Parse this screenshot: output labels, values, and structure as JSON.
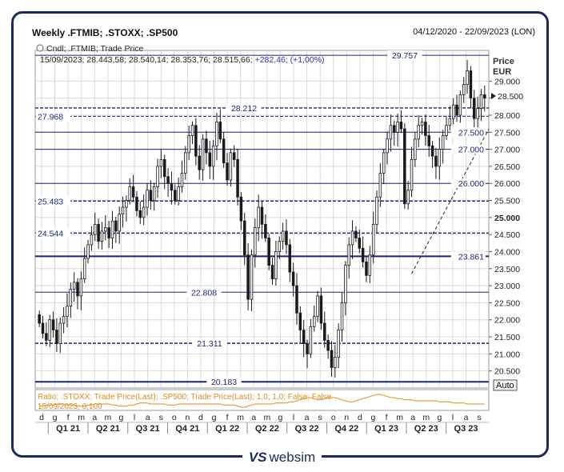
{
  "header": {
    "title": "Weekly .FTMIB; .STOXX; .SP500",
    "date_range": "04/12/2020 - 22/09/2023 (LON)"
  },
  "legend": {
    "line1": "Cndl; .FTMIB; Trade Price",
    "line2_prefix": "15/09/2023; 28.443,58; 28.540,14; 28.353,76; 28.515,66;",
    "line2_change": "+282,46; (+1,00%)",
    "ratio_line": "Ratio; .STOXX; Trade Price(Last); .SP500; Trade Price(Last);   1,0; 1,0; False; False",
    "ratio_line2": "15/09/2023; 0,100"
  },
  "axis": {
    "price_label": "Price",
    "currency": "EUR",
    "auto_button": "Auto"
  },
  "brand": {
    "name": "websim",
    "mark": "VS"
  },
  "colors": {
    "candle": "#1a1a1a",
    "level_line": "#1a237e",
    "level_label": "#1a237e",
    "ratio_line": "#e08a1e",
    "grid": "#d8d8d8",
    "frame": "#1a2a5c"
  },
  "chart_data": {
    "type": "candlestick",
    "y_range": [
      20.0,
      29.9
    ],
    "y_ticks": [
      "20.500",
      "21.000",
      "21.500",
      "22.000",
      "22.500",
      "23.000",
      "23.500",
      "24.000",
      "24.500",
      "25.000",
      "25.500",
      "26.000",
      "26.500",
      "27.000",
      "27.500",
      "28.000",
      "28.500",
      "29.000"
    ],
    "y_ticks_bold": [
      "25.000"
    ],
    "current_price": "28.500",
    "x_months": [
      "d",
      "g",
      "f",
      "m",
      "a",
      "m",
      "g",
      "l",
      "a",
      "s",
      "o",
      "n",
      "d",
      "g",
      "f",
      "m",
      "a",
      "m",
      "g",
      "l",
      "a",
      "s",
      "o",
      "n",
      "d",
      "g",
      "f",
      "m",
      "a",
      "m",
      "g",
      "l",
      "a",
      "s"
    ],
    "x_quarters": [
      "Q1 21",
      "Q2 21",
      "Q3 21",
      "Q4 21",
      "Q1 22",
      "Q2 22",
      "Q3 22",
      "Q4 22",
      "Q1 23",
      "Q2 23",
      "Q3 23"
    ],
    "levels": [
      {
        "value": 29.757,
        "label": "29.757",
        "style": "solid",
        "weight": "thin",
        "label_pos": "mid"
      },
      {
        "value": 28.212,
        "label": "28.212",
        "style": "dashed",
        "weight": "medium",
        "label_pos": "mid"
      },
      {
        "value": 27.968,
        "label": "27.968",
        "style": "dashed",
        "weight": "thin",
        "label_pos": "left"
      },
      {
        "value": 27.5,
        "label": "27.500",
        "style": "solid",
        "weight": "thin",
        "label_pos": "right"
      },
      {
        "value": 27.0,
        "label": "27.000",
        "style": "solid",
        "weight": "thin",
        "label_pos": "right"
      },
      {
        "value": 26.0,
        "label": "26.000",
        "style": "solid",
        "weight": "thin",
        "label_pos": "right"
      },
      {
        "value": 25.483,
        "label": "25.483",
        "style": "dashed",
        "weight": "medium",
        "label_pos": "left"
      },
      {
        "value": 24.544,
        "label": "24.544",
        "style": "dashed",
        "weight": "medium",
        "label_pos": "left"
      },
      {
        "value": 23.861,
        "label": "23.861",
        "style": "solid",
        "weight": "thick",
        "label_pos": "right"
      },
      {
        "value": 22.808,
        "label": "22.808",
        "style": "solid",
        "weight": "thin",
        "label_pos": "mid"
      },
      {
        "value": 21.311,
        "label": "21.311",
        "style": "dashed",
        "weight": "medium",
        "label_pos": "mid"
      },
      {
        "value": 20.183,
        "label": "20.183",
        "style": "solid",
        "weight": "thick",
        "label_pos": "mid"
      }
    ],
    "closes": [
      21.9,
      21.6,
      21.4,
      22.0,
      21.7,
      21.3,
      21.9,
      22.1,
      22.4,
      22.9,
      23.1,
      22.7,
      23.2,
      23.8,
      24.2,
      24.5,
      24.8,
      24.3,
      24.6,
      24.7,
      24.4,
      24.9,
      24.6,
      25.1,
      25.3,
      25.5,
      25.9,
      25.6,
      25.2,
      25.0,
      25.3,
      25.8,
      25.5,
      25.9,
      26.5,
      26.7,
      26.2,
      26.0,
      25.8,
      25.5,
      25.9,
      26.3,
      26.9,
      27.4,
      27.7,
      26.8,
      26.4,
      27.3,
      26.9,
      26.5,
      27.1,
      27.8,
      27.3,
      26.6,
      26.1,
      26.9,
      26.7,
      25.6,
      24.9,
      23.9,
      22.6,
      23.9,
      24.7,
      25.3,
      24.8,
      24.4,
      23.6,
      23.2,
      24.0,
      24.3,
      24.6,
      24.2,
      23.4,
      23.0,
      22.2,
      21.7,
      21.3,
      21.0,
      21.8,
      22.1,
      22.7,
      21.9,
      21.4,
      21.1,
      20.6,
      20.9,
      21.7,
      22.5,
      23.6,
      24.2,
      24.6,
      24.4,
      24.1,
      23.7,
      23.3,
      23.9,
      24.8,
      25.6,
      26.3,
      26.9,
      27.3,
      27.7,
      27.5,
      27.8,
      27.6,
      25.4,
      25.8,
      26.7,
      27.3,
      27.7,
      27.8,
      27.4,
      27.1,
      26.8,
      26.5,
      27.0,
      27.4,
      27.7,
      27.9,
      28.3,
      28.0,
      28.6,
      28.9,
      29.3,
      28.5,
      27.9,
      28.2,
      28.6,
      28.5
    ],
    "ratio_values": [
      0.098,
      0.098,
      0.099,
      0.099,
      0.099,
      0.1,
      0.1,
      0.1,
      0.099,
      0.099,
      0.099,
      0.098,
      0.098,
      0.098,
      0.099,
      0.099,
      0.1,
      0.1,
      0.1,
      0.1,
      0.1,
      0.099,
      0.099,
      0.098,
      0.098,
      0.098,
      0.099,
      0.099,
      0.1,
      0.101,
      0.101,
      0.101,
      0.1,
      0.1,
      0.1,
      0.1,
      0.1,
      0.099,
      0.099,
      0.099,
      0.1,
      0.1,
      0.1,
      0.1,
      0.1,
      0.1,
      0.1,
      0.1,
      0.1,
      0.1,
      0.1,
      0.1,
      0.1,
      0.099,
      0.099,
      0.099,
      0.099,
      0.098,
      0.097,
      0.097,
      0.098,
      0.099,
      0.1,
      0.1,
      0.1,
      0.1,
      0.1,
      0.1,
      0.101,
      0.101,
      0.101,
      0.101,
      0.102,
      0.102,
      0.103,
      0.104,
      0.105,
      0.106,
      0.106,
      0.105,
      0.104,
      0.104,
      0.105,
      0.106,
      0.106,
      0.106,
      0.105,
      0.104,
      0.103,
      0.102,
      0.102,
      0.103,
      0.104,
      0.105,
      0.106,
      0.107,
      0.108,
      0.109,
      0.109,
      0.108,
      0.107,
      0.106,
      0.106,
      0.105,
      0.105,
      0.104,
      0.104,
      0.104,
      0.103,
      0.103,
      0.103,
      0.103,
      0.103,
      0.103,
      0.103,
      0.102,
      0.102,
      0.102,
      0.102,
      0.101,
      0.101,
      0.101,
      0.101,
      0.1,
      0.1,
      0.1,
      0.1,
      0.1,
      0.1
    ],
    "trendline": {
      "from_index": 107,
      "from_value": 23.35,
      "to_index": 130,
      "to_value": 27.75,
      "style": "dashed"
    }
  }
}
